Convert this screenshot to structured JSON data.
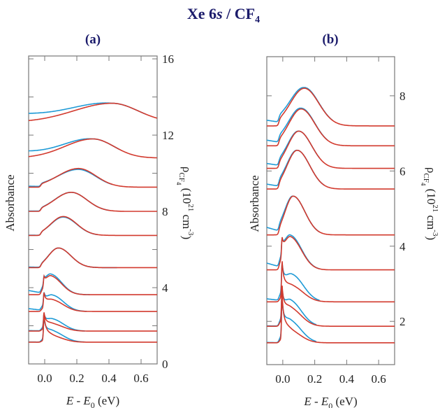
{
  "title": {
    "main": "Xe 6",
    "italic": "s",
    "rest": " / CF",
    "sub": "4"
  },
  "colors": {
    "fit": "#d23a2e",
    "experiment": "#1e9ad6",
    "title": "#1b1b6b",
    "axis": "#777777"
  },
  "chart_data": [
    {
      "panel_label": "(a)",
      "type": "line",
      "xlabel": {
        "main": "E - E",
        "sub": "0",
        "unit": " (eV)"
      },
      "ylabel_left": "Absorbance",
      "ylabel_right": {
        "rho": "ρ",
        "sub": "CF",
        "subsub": "4",
        "unit_open": " (10",
        "exp": "21",
        "unit_mid": " cm",
        "exp2": "-3",
        "unit_close": ")"
      },
      "xlim": [
        -0.1,
        0.7
      ],
      "ylim_right": [
        0,
        16.15
      ],
      "x_ticks": [
        "0.0",
        "0.2",
        "0.4",
        "0.6"
      ],
      "x_tick_values": [
        0,
        0.2,
        0.4,
        0.6
      ],
      "y_ticks": [
        "0",
        "4",
        "8",
        "12",
        "16"
      ],
      "y_tick_values": [
        0,
        4,
        8,
        12,
        16
      ],
      "y_minor_step": 2,
      "curves": [
        {
          "offset": 12.67,
          "peak_E": 0.42,
          "peak_level": 13.67,
          "exp_end_E": 0.63,
          "exp_peak_level": 13.67,
          "exp_pre_level": 13.05
        },
        {
          "offset": 10.8,
          "peak_E": 0.3,
          "peak_level": 11.8,
          "exp_end_E": 0.47,
          "exp_peak_level": 11.8,
          "exp_pre_level": 11.1
        },
        {
          "offset": 9.27,
          "peak_E": 0.21,
          "peak_level": 10.25,
          "exp_end_E": 0.42,
          "exp_peak_level": 10.2,
          "exp_pre_level": 9.32
        },
        {
          "offset": 8.0,
          "peak_E": 0.165,
          "peak_level": 9.0,
          "exp_end_E": 0.4,
          "exp_peak_level": 9.0,
          "exp_pre_level": 8.02
        },
        {
          "offset": 6.74,
          "peak_E": 0.115,
          "peak_level": 7.73,
          "exp_end_E": 0.33,
          "exp_peak_level": 7.7,
          "exp_pre_level": 6.75
        },
        {
          "offset": 5.05,
          "peak_E": 0.085,
          "peak_level": 6.08,
          "exp_end_E": 0.45,
          "exp_peak_level": 6.08,
          "exp_pre_level": 5.08
        },
        {
          "offset": 3.63,
          "peak_E": 0.04,
          "peak_level": 4.55,
          "spike_level": 4.6,
          "exp_end_E": 0.28,
          "exp_peak_level": 4.65,
          "exp_pre_level": 3.85
        },
        {
          "offset": 2.75,
          "peak_E": 0.05,
          "peak_level": 3.3,
          "spike_level": 3.74,
          "exp_end_E": 0.26,
          "exp_peak_level": 3.55,
          "exp_pre_level": 2.9
        },
        {
          "offset": 1.72,
          "peak_E": 0.05,
          "peak_level": 2.05,
          "spike_level": 2.7,
          "exp_end_E": 0.25,
          "exp_peak_level": 2.3,
          "exp_pre_level": 1.75
        },
        {
          "offset": 1.14,
          "peak_E": 0.05,
          "peak_level": 1.4,
          "spike_level": 2.6,
          "exp_end_E": 0.25,
          "exp_peak_level": 1.65,
          "exp_pre_level": 1.15
        }
      ]
    },
    {
      "panel_label": "(b)",
      "type": "line",
      "xlabel": {
        "main": "E - E",
        "sub": "0",
        "unit": " (eV)"
      },
      "ylabel_left": "Absorbance",
      "ylabel_right": {
        "rho": "ρ",
        "sub": "CF",
        "subsub": "4",
        "unit_open": " (10",
        "exp": "21",
        "unit_mid": " cm",
        "exp2": "-3",
        "unit_close": ")"
      },
      "xlim": [
        -0.1,
        0.7
      ],
      "ylim_right": [
        0.85,
        9.04
      ],
      "x_ticks": [
        "0.0",
        "0.2",
        "0.4",
        "0.6"
      ],
      "x_tick_values": [
        0,
        0.2,
        0.4,
        0.6
      ],
      "y_ticks": [
        "2",
        "4",
        "6",
        "8"
      ],
      "y_tick_values": [
        2,
        4,
        6,
        8
      ],
      "y_minor_step": 2,
      "curves": [
        {
          "offset": 7.2,
          "peak_E": 0.135,
          "peak_level": 8.2,
          "exp_end_E": 0.31,
          "exp_peak_level": 8.22,
          "exp_pre_level": 7.35
        },
        {
          "offset": 6.67,
          "peak_E": 0.115,
          "peak_level": 7.65,
          "exp_end_E": 0.28,
          "exp_peak_level": 7.67,
          "exp_pre_level": 6.82
        },
        {
          "offset": 6.07,
          "peak_E": 0.1,
          "peak_level": 7.06,
          "exp_end_E": 0.23,
          "exp_peak_level": 7.06,
          "exp_pre_level": 6.2
        },
        {
          "offset": 5.52,
          "peak_E": 0.09,
          "peak_level": 6.55,
          "exp_end_E": 0.26,
          "exp_peak_level": 6.55,
          "exp_pre_level": 5.65
        },
        {
          "offset": 4.3,
          "peak_E": 0.065,
          "peak_level": 5.33,
          "exp_end_E": 0.23,
          "exp_peak_level": 5.33,
          "exp_pre_level": 4.5
        },
        {
          "offset": 3.37,
          "peak_E": 0.05,
          "peak_level": 4.2,
          "spike_level": 4.24,
          "exp_end_E": 0.23,
          "exp_peak_level": 4.25,
          "exp_pre_level": 3.55
        },
        {
          "offset": 2.52,
          "peak_E": 0.06,
          "peak_level": 2.9,
          "spike_level": 3.6,
          "exp_end_E": 0.23,
          "exp_peak_level": 3.2,
          "exp_pre_level": 2.6
        },
        {
          "offset": 1.87,
          "peak_E": 0.05,
          "peak_level": 2.3,
          "spike_level": 2.95,
          "exp_end_E": 0.21,
          "exp_peak_level": 2.5,
          "exp_pre_level": 1.88
        },
        {
          "offset": 1.43,
          "peak_E": 0.05,
          "peak_level": 1.7,
          "spike_level": 2.7,
          "exp_end_E": 0.21,
          "exp_peak_level": 1.95,
          "exp_pre_level": 1.44
        }
      ]
    }
  ]
}
